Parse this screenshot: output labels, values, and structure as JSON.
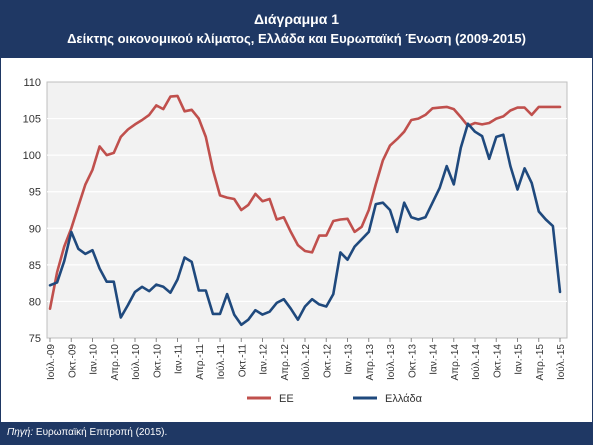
{
  "header": {
    "title": "Διάγραμμα 1",
    "subtitle": "Δείκτης οικονομικού κλίματος, Ελλάδα και Ευρωπαϊκή Ένωση (2009-2015)"
  },
  "footer": {
    "source_label": "Πηγή:",
    "source_text": "Ευρωπαϊκή Επιτροπή (2015)."
  },
  "colors": {
    "ee": "#c0504d",
    "ellada": "#1f497d",
    "brand": "#1f3864"
  },
  "chart_data": {
    "type": "line",
    "title": "Δείκτης οικονομικού κλίματος, Ελλάδα και Ευρωπαϊκή Ένωση (2009-2015)",
    "xlabel": "",
    "ylabel": "",
    "ylim": [
      75,
      110
    ],
    "yticks": [
      75,
      80,
      85,
      90,
      95,
      100,
      105,
      110
    ],
    "grid": true,
    "legend_position": "bottom",
    "x_tick_labels": [
      "Ιούλ.-09",
      "Οκτ.-09",
      "Ιαν.-10",
      "Απρ.-10",
      "Ιούλ.-10",
      "Οκτ.-10",
      "Ιαν.-11",
      "Απρ.-11",
      "Ιούλ.-11",
      "Οκτ.-11",
      "Ιαν.-12",
      "Απρ.-12",
      "Ιούλ.-12",
      "Οκτ.-12",
      "Ιαν.-13",
      "Απρ.-13",
      "Ιούλ.-13",
      "Οκτ.-13",
      "Ιαν.-14",
      "Απρ.-14",
      "Ιούλ.-14",
      "Οκτ.-14",
      "Ιαν.-15",
      "Απρ.-15",
      "Ιούλ.-15"
    ],
    "x": [
      "2009-07",
      "2009-08",
      "2009-09",
      "2009-10",
      "2009-11",
      "2009-12",
      "2010-01",
      "2010-02",
      "2010-03",
      "2010-04",
      "2010-05",
      "2010-06",
      "2010-07",
      "2010-08",
      "2010-09",
      "2010-10",
      "2010-11",
      "2010-12",
      "2011-01",
      "2011-02",
      "2011-03",
      "2011-04",
      "2011-05",
      "2011-06",
      "2011-07",
      "2011-08",
      "2011-09",
      "2011-10",
      "2011-11",
      "2011-12",
      "2012-01",
      "2012-02",
      "2012-03",
      "2012-04",
      "2012-05",
      "2012-06",
      "2012-07",
      "2012-08",
      "2012-09",
      "2012-10",
      "2012-11",
      "2012-12",
      "2013-01",
      "2013-02",
      "2013-03",
      "2013-04",
      "2013-05",
      "2013-06",
      "2013-07",
      "2013-08",
      "2013-09",
      "2013-10",
      "2013-11",
      "2013-12",
      "2014-01",
      "2014-02",
      "2014-03",
      "2014-04",
      "2014-05",
      "2014-06",
      "2014-07",
      "2014-08",
      "2014-09",
      "2014-10",
      "2014-11",
      "2014-12",
      "2015-01",
      "2015-02",
      "2015-03",
      "2015-04",
      "2015-05",
      "2015-06",
      "2015-07"
    ],
    "series": [
      {
        "name": "ΕΕ",
        "values": [
          79.0,
          84.0,
          87.5,
          90.0,
          93.0,
          96.0,
          98.0,
          101.2,
          100.0,
          100.3,
          102.5,
          103.5,
          104.2,
          104.8,
          105.5,
          106.8,
          106.3,
          108.0,
          108.1,
          106.0,
          106.2,
          105.0,
          102.5,
          98.0,
          94.5,
          94.2,
          94.0,
          92.5,
          93.2,
          94.7,
          93.7,
          94.0,
          91.2,
          91.5,
          89.5,
          87.7,
          86.9,
          86.7,
          89.0,
          89.0,
          91.0,
          91.2,
          91.3,
          89.5,
          90.2,
          92.5,
          96.0,
          99.3,
          101.3,
          102.2,
          103.2,
          104.8,
          105.0,
          105.5,
          106.4,
          106.5,
          106.6,
          106.3,
          105.2,
          104.0,
          104.4,
          104.2,
          104.4,
          105.0,
          105.3,
          106.1,
          106.5,
          106.5,
          105.5,
          106.6,
          106.6,
          106.6,
          106.6
        ]
      },
      {
        "name": "Ελλάδα",
        "values": [
          82.2,
          82.6,
          85.5,
          89.5,
          87.2,
          86.5,
          87.0,
          84.5,
          82.7,
          82.7,
          77.8,
          79.5,
          81.3,
          82.0,
          81.4,
          82.3,
          82.0,
          81.2,
          83.0,
          86.0,
          85.4,
          81.5,
          81.5,
          78.3,
          78.3,
          81.0,
          78.2,
          76.8,
          77.5,
          78.8,
          78.2,
          78.6,
          79.8,
          80.3,
          79.0,
          77.5,
          79.3,
          80.3,
          79.6,
          79.3,
          81.0,
          86.7,
          85.7,
          87.5,
          88.5,
          89.5,
          93.3,
          93.5,
          92.5,
          89.5,
          93.5,
          91.5,
          91.2,
          91.5,
          93.5,
          95.5,
          98.5,
          96.0,
          101.0,
          104.3,
          103.2,
          102.6,
          99.5,
          102.5,
          102.8,
          98.5,
          95.3,
          98.2,
          96.2,
          92.3,
          91.2,
          90.3,
          81.3
        ]
      }
    ]
  }
}
